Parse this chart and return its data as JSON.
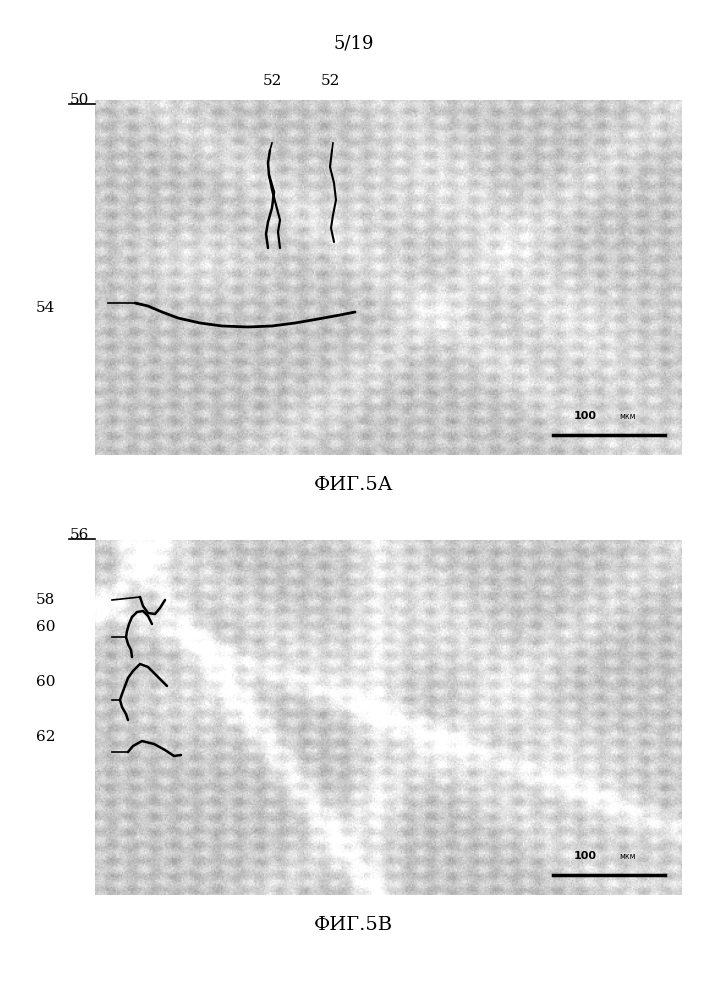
{
  "page_label": "5/19",
  "fig_a_label": "ФИГ.5А",
  "fig_b_label": "ФИГ.5В",
  "bg_color": "#ffffff",
  "label_50": "50",
  "label_52a": "52",
  "label_52b": "52",
  "label_54": "54",
  "label_56": "56",
  "label_58": "58",
  "label_60a": "60",
  "label_60b": "60",
  "label_62": "62",
  "scale_bar_text": "100",
  "scale_bar_units": "мкм"
}
